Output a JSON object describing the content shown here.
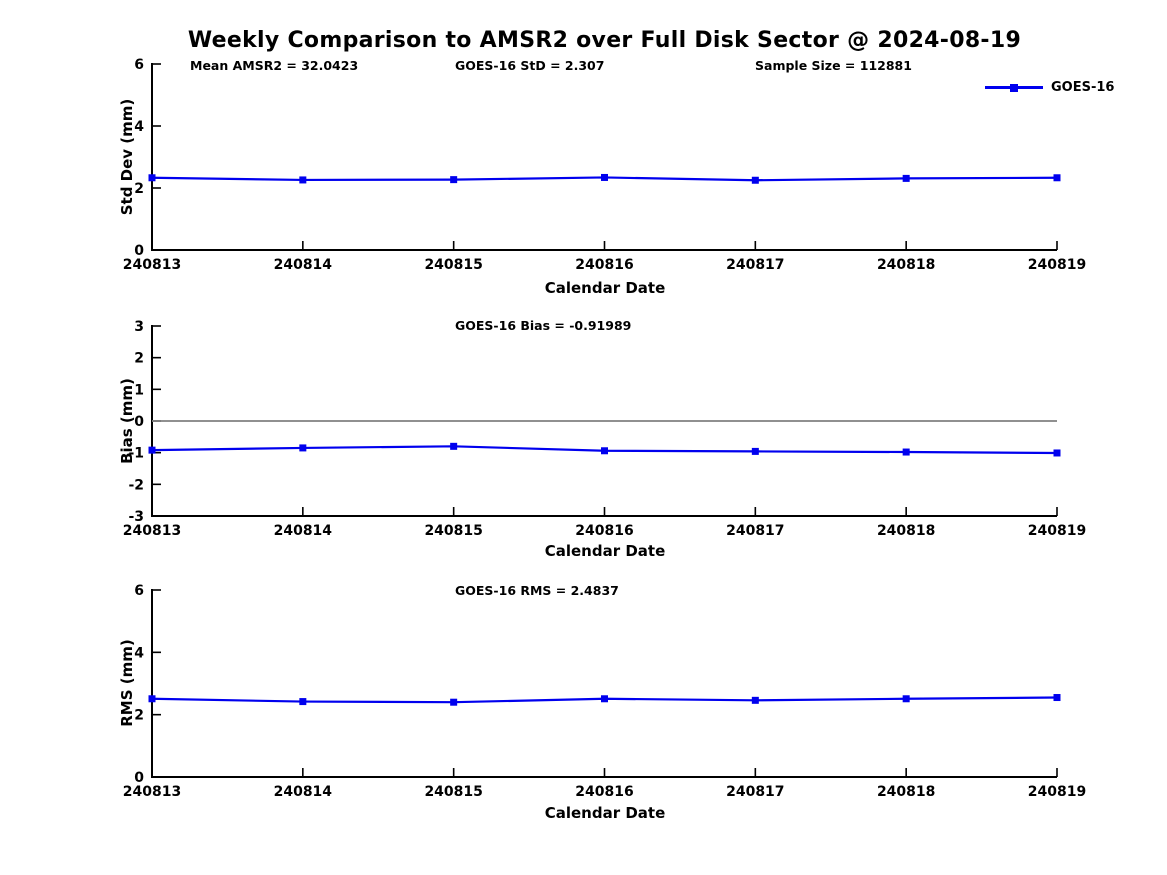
{
  "title": "Weekly Comparison to AMSR2 over Full Disk Sector @ 2024-08-19",
  "legend": {
    "label": "GOES-16"
  },
  "colors": {
    "series": "#0000EE",
    "axis": "#000000",
    "zero_line": "#808080",
    "text": "#000000",
    "background": "#ffffff"
  },
  "chart_data": [
    {
      "type": "line",
      "series_name": "GOES-16",
      "categories": [
        "240813",
        "240814",
        "240815",
        "240816",
        "240817",
        "240818",
        "240819"
      ],
      "values": [
        2.33,
        2.26,
        2.27,
        2.34,
        2.25,
        2.31,
        2.33
      ],
      "ylabel": "Std Dev (mm)",
      "xlabel": "Calendar Date",
      "ylim": [
        0,
        6
      ],
      "yticks": [
        0,
        2,
        4,
        6
      ],
      "grid": false,
      "legend_position": "top-right",
      "annotations": [
        "Mean AMSR2 = 32.0423",
        "GOES-16 StD = 2.307",
        "Sample Size = 112881"
      ]
    },
    {
      "type": "line",
      "series_name": "GOES-16",
      "categories": [
        "240813",
        "240814",
        "240815",
        "240816",
        "240817",
        "240818",
        "240819"
      ],
      "values": [
        -0.92,
        -0.85,
        -0.8,
        -0.94,
        -0.96,
        -0.98,
        -1.01
      ],
      "ylabel": "Bias (mm)",
      "xlabel": "Calendar Date",
      "ylim": [
        -3,
        3
      ],
      "yticks": [
        -3,
        -2,
        -1,
        0,
        1,
        2,
        3
      ],
      "zero_line": true,
      "grid": false,
      "annotations": [
        "GOES-16 Bias  = -0.91989"
      ]
    },
    {
      "type": "line",
      "series_name": "GOES-16",
      "categories": [
        "240813",
        "240814",
        "240815",
        "240816",
        "240817",
        "240818",
        "240819"
      ],
      "values": [
        2.51,
        2.42,
        2.4,
        2.51,
        2.46,
        2.51,
        2.55
      ],
      "ylabel": "RMS (mm)",
      "xlabel": "Calendar Date",
      "ylim": [
        0,
        6
      ],
      "yticks": [
        0,
        2,
        4,
        6
      ],
      "grid": false,
      "annotations": [
        "GOES-16 RMS = 2.4837"
      ]
    }
  ]
}
